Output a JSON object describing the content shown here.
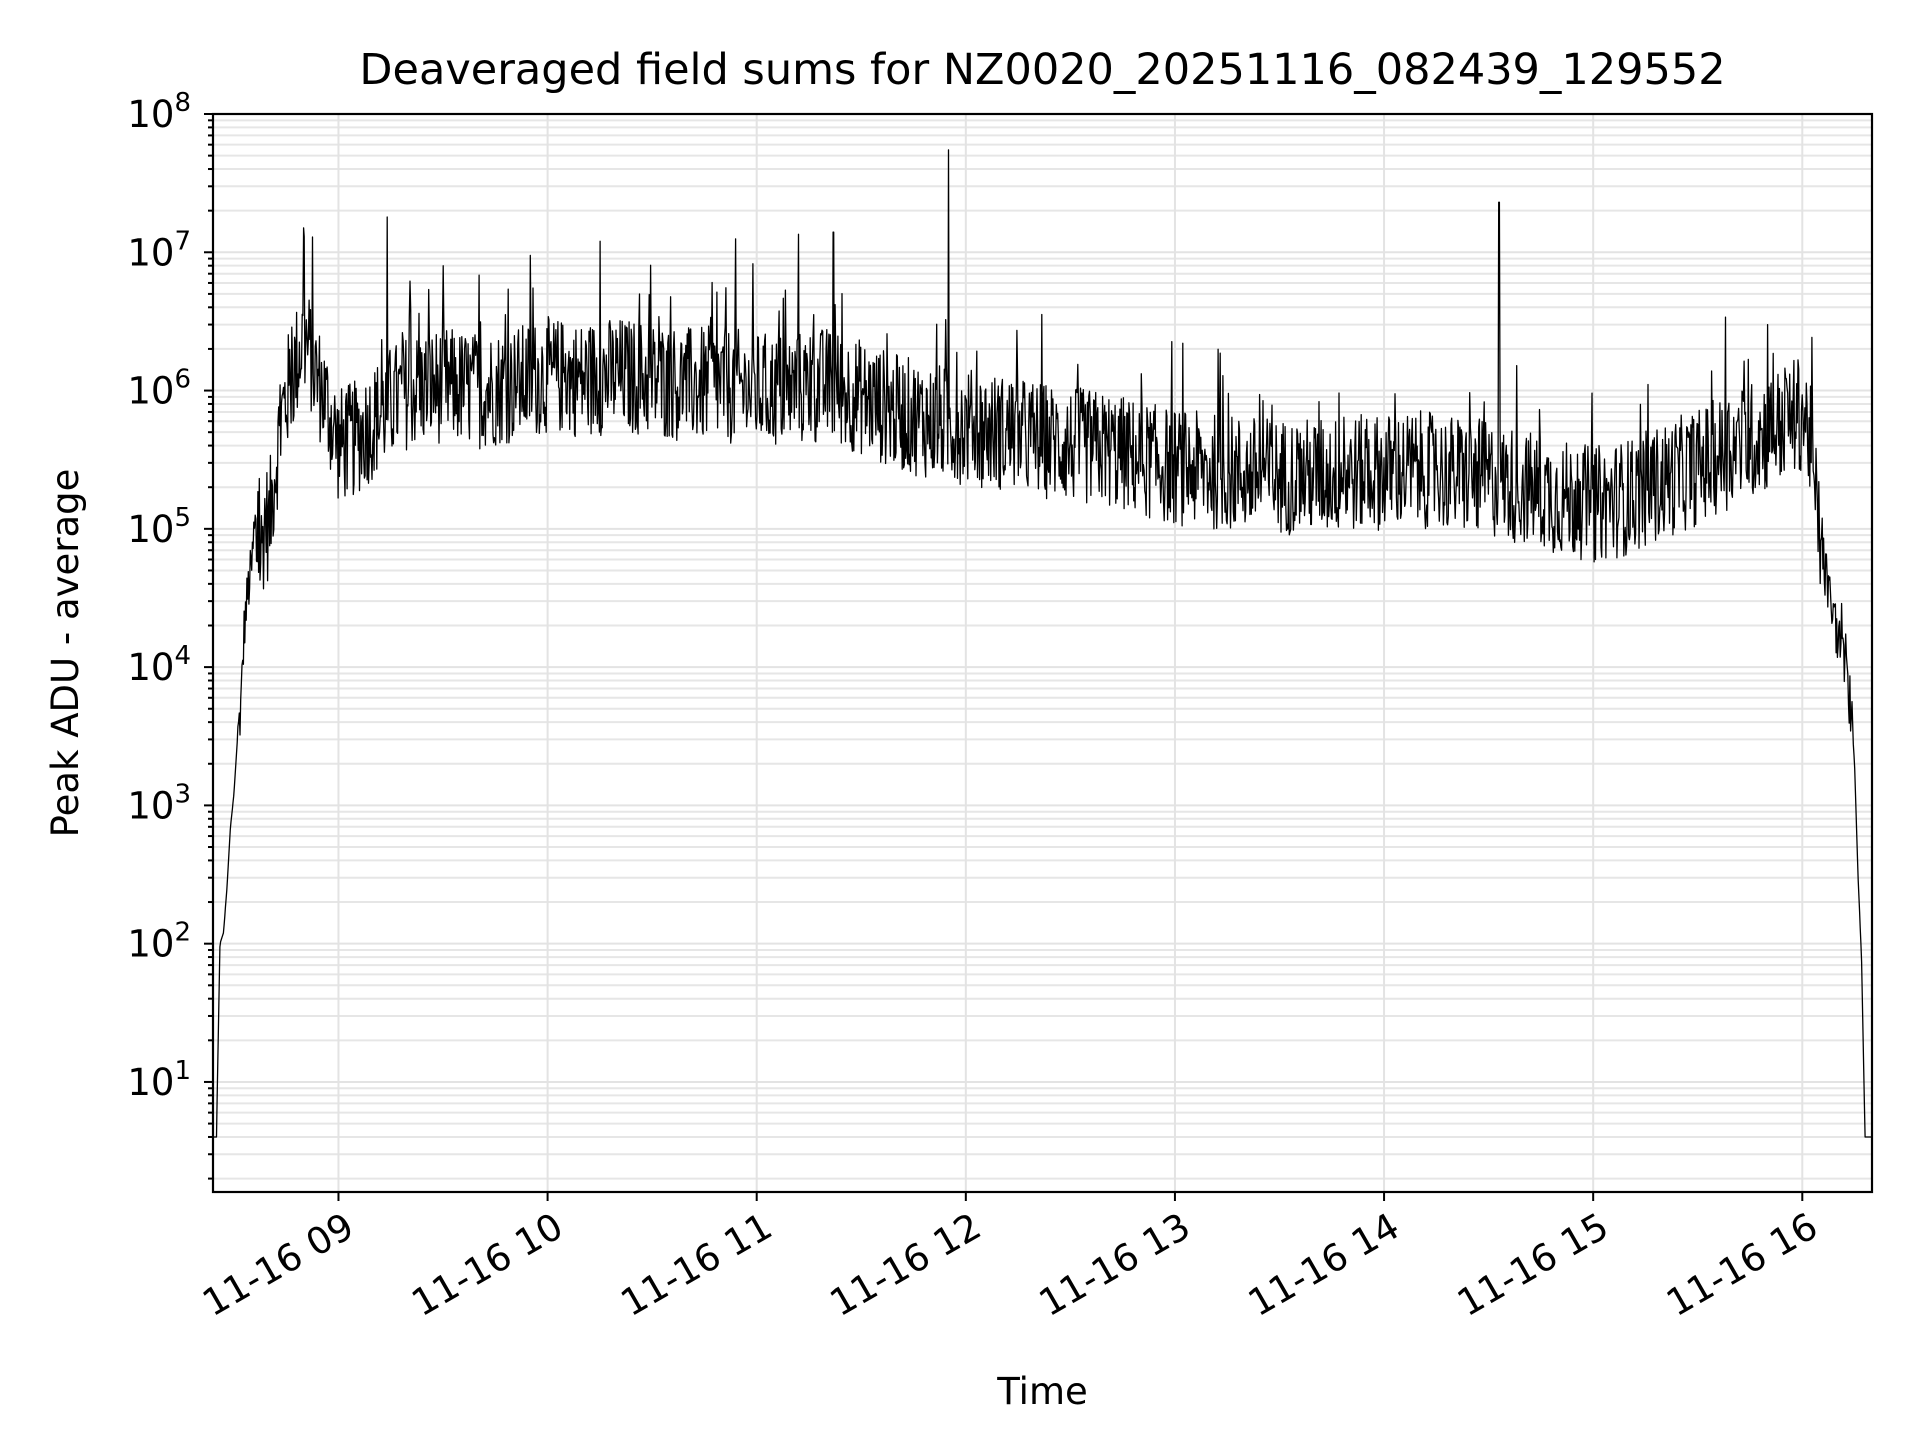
{
  "chart_data": {
    "type": "line",
    "title": "Deaveraged field sums for NZ0020_20251116_082439_129552",
    "xlabel": "Time",
    "ylabel": "Peak ADU - average",
    "yscale": "log",
    "ylim": [
      1.6,
      100000000
    ],
    "xlim": [
      "2025-11-16 08:24",
      "2025-11-16 16:20"
    ],
    "x_ticks": [
      {
        "label": "11-16 09",
        "time": "2025-11-16 09:00"
      },
      {
        "label": "11-16 10",
        "time": "2025-11-16 10:00"
      },
      {
        "label": "11-16 11",
        "time": "2025-11-16 11:00"
      },
      {
        "label": "11-16 12",
        "time": "2025-11-16 12:00"
      },
      {
        "label": "11-16 13",
        "time": "2025-11-16 13:00"
      },
      {
        "label": "11-16 14",
        "time": "2025-11-16 14:00"
      },
      {
        "label": "11-16 15",
        "time": "2025-11-16 15:00"
      },
      {
        "label": "11-16 16",
        "time": "2025-11-16 16:00"
      }
    ],
    "y_ticks": [
      {
        "base": "10",
        "exp": "1",
        "value": 10
      },
      {
        "base": "10",
        "exp": "2",
        "value": 100
      },
      {
        "base": "10",
        "exp": "3",
        "value": 1000
      },
      {
        "base": "10",
        "exp": "4",
        "value": 10000
      },
      {
        "base": "10",
        "exp": "5",
        "value": 100000
      },
      {
        "base": "10",
        "exp": "6",
        "value": 1000000
      },
      {
        "base": "10",
        "exp": "7",
        "value": 10000000
      },
      {
        "base": "10",
        "exp": "8",
        "value": 100000000
      }
    ],
    "grid": true,
    "line_color": "#000000",
    "series_points": [
      [
        "08:24",
        4
      ],
      [
        "08:25",
        4
      ],
      [
        "08:26",
        100
      ],
      [
        "08:27",
        120
      ],
      [
        "08:28",
        250
      ],
      [
        "08:29",
        700
      ],
      [
        "08:30",
        1200
      ],
      [
        "08:31",
        3000
      ],
      [
        "08:32",
        5000
      ],
      [
        "08:33",
        20000
      ],
      [
        "08:34",
        35000
      ],
      [
        "08:35",
        50000
      ],
      [
        "08:36",
        90000
      ],
      [
        "08:37",
        60000
      ],
      [
        "08:38",
        70000
      ],
      [
        "08:39",
        130000
      ],
      [
        "08:40",
        100000
      ],
      [
        "08:42",
        300000
      ],
      [
        "08:44",
        700000
      ],
      [
        "08:46",
        1100000
      ],
      [
        "08:48",
        1600000
      ],
      [
        "08:50",
        2500000
      ],
      [
        "08:52",
        1800000
      ],
      [
        "08:54",
        1200000
      ],
      [
        "08:56",
        900000
      ],
      [
        "08:58",
        600000
      ],
      [
        "09:00",
        400000
      ],
      [
        "09:05",
        450000
      ],
      [
        "09:10",
        600000
      ],
      [
        "09:15",
        800000
      ],
      [
        "09:20",
        1000000
      ],
      [
        "09:30",
        1100000
      ],
      [
        "09:40",
        1000000
      ],
      [
        "09:50",
        1100000
      ],
      [
        "10:00",
        1300000
      ],
      [
        "10:10",
        1200000
      ],
      [
        "10:20",
        1300000
      ],
      [
        "10:30",
        1200000
      ],
      [
        "10:40",
        1100000
      ],
      [
        "10:50",
        1100000
      ],
      [
        "11:00",
        1000000
      ],
      [
        "11:10",
        1000000
      ],
      [
        "11:20",
        1100000
      ],
      [
        "11:30",
        900000
      ],
      [
        "11:40",
        700000
      ],
      [
        "11:50",
        600000
      ],
      [
        "12:00",
        550000
      ],
      [
        "12:10",
        500000
      ],
      [
        "12:20",
        450000
      ],
      [
        "12:30",
        400000
      ],
      [
        "12:40",
        380000
      ],
      [
        "12:50",
        320000
      ],
      [
        "13:00",
        280000
      ],
      [
        "13:10",
        260000
      ],
      [
        "13:20",
        250000
      ],
      [
        "13:30",
        240000
      ],
      [
        "13:40",
        240000
      ],
      [
        "13:50",
        250000
      ],
      [
        "14:00",
        260000
      ],
      [
        "14:10",
        270000
      ],
      [
        "14:20",
        250000
      ],
      [
        "14:30",
        230000
      ],
      [
        "14:40",
        200000
      ],
      [
        "14:50",
        170000
      ],
      [
        "15:00",
        150000
      ],
      [
        "15:10",
        170000
      ],
      [
        "15:20",
        220000
      ],
      [
        "15:30",
        280000
      ],
      [
        "15:40",
        380000
      ],
      [
        "15:50",
        500000
      ],
      [
        "16:00",
        700000
      ],
      [
        "16:02",
        500000
      ],
      [
        "16:04",
        150000
      ],
      [
        "16:06",
        60000
      ],
      [
        "16:08",
        30000
      ],
      [
        "16:10",
        18000
      ],
      [
        "16:12",
        10000
      ],
      [
        "16:14",
        5000
      ],
      [
        "16:15",
        2000
      ],
      [
        "16:16",
        300
      ],
      [
        "16:17",
        80
      ],
      [
        "16:18",
        4
      ],
      [
        "16:20",
        4
      ]
    ],
    "spikes": [
      [
        "08:50",
        15000000
      ],
      [
        "09:14",
        18000000
      ],
      [
        "09:55",
        9500000
      ],
      [
        "10:15",
        12000000
      ],
      [
        "10:54",
        12500000
      ],
      [
        "11:12",
        13500000
      ],
      [
        "11:22",
        14000000
      ],
      [
        "11:55",
        55000000
      ],
      [
        "14:33",
        23000000
      ],
      [
        "15:38",
        3400000
      ],
      [
        "15:50",
        3000000
      ]
    ]
  }
}
